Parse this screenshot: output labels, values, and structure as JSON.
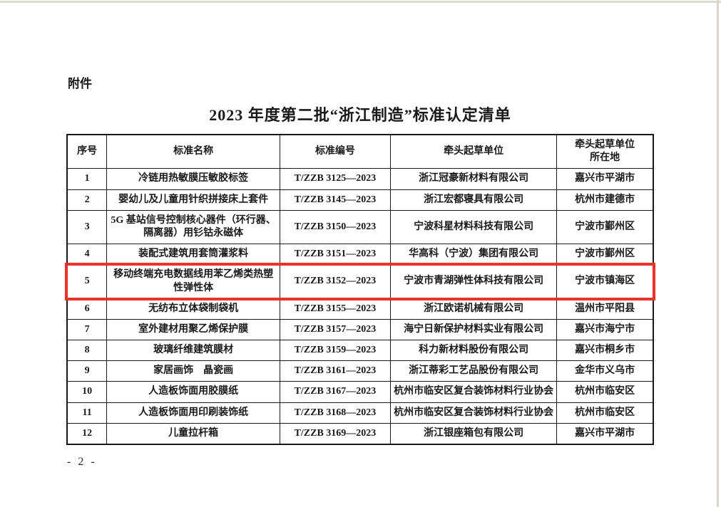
{
  "page": {
    "attachment_label": "附件",
    "title": "2023 年度第二批“浙江制造”标准认定清单",
    "page_number": "- 2 -"
  },
  "highlight_color": "#e8322a",
  "table": {
    "columns": [
      {
        "key": "no",
        "label": "序号"
      },
      {
        "key": "name",
        "label": "标准名称"
      },
      {
        "key": "code",
        "label": "标准编号"
      },
      {
        "key": "unit",
        "label": "牵头起草单位"
      },
      {
        "key": "location",
        "label": "牵头起草单位\n所在地"
      }
    ],
    "rows": [
      {
        "no": "1",
        "name": "冷链用热敏膜压敏胶标签",
        "code": "T/ZZB 3125—2023",
        "unit": "浙江冠豪新材料有限公司",
        "location": "嘉兴市平湖市",
        "highlighted": false
      },
      {
        "no": "2",
        "name": "婴幼儿及儿童用针织拼接床上套件",
        "code": "T/ZZB 3145—2023",
        "unit": "浙江宏都寝具有限公司",
        "location": "杭州市建德市",
        "highlighted": false
      },
      {
        "no": "3",
        "name": "5G 基站信号控制核心器件（环行器、隔离器）用钐钴永磁体",
        "code": "T/ZZB 3150—2023",
        "unit": "宁波科星材料科技有限公司",
        "location": "宁波市鄞州区",
        "highlighted": false
      },
      {
        "no": "4",
        "name": "装配式建筑用套筒灌浆料",
        "code": "T/ZZB 3151—2023",
        "unit": "华高科（宁波）集团有限公司",
        "location": "宁波市鄞州区",
        "highlighted": false
      },
      {
        "no": "5",
        "name": "移动终端充电数据线用苯乙烯类热塑性弹性体",
        "code": "T/ZZB 3152—2023",
        "unit": "宁波市青湖弹性体科技有限公司",
        "location": "宁波市镇海区",
        "highlighted": true
      },
      {
        "no": "6",
        "name": "无纺布立体袋制袋机",
        "code": "T/ZZB 3155—2023",
        "unit": "浙江欧诺机械有限公司",
        "location": "温州市平阳县",
        "highlighted": false
      },
      {
        "no": "7",
        "name": "室外建材用聚乙烯保护膜",
        "code": "T/ZZB 3157—2023",
        "unit": "海宁日新保护材料实业有限公司",
        "location": "嘉兴市海宁市",
        "highlighted": false
      },
      {
        "no": "8",
        "name": "玻璃纤维建筑膜材",
        "code": "T/ZZB 3159—2023",
        "unit": "科力新材料股份有限公司",
        "location": "嘉兴市桐乡市",
        "highlighted": false
      },
      {
        "no": "9",
        "name": "家居画饰　晶瓷画",
        "code": "T/ZZB 3161—2023",
        "unit": "浙江蒂彩工艺品股份有限公司",
        "location": "金华市义乌市",
        "highlighted": false
      },
      {
        "no": "10",
        "name": "人造板饰面用胶膜纸",
        "code": "T/ZZB 3167—2023",
        "unit": "杭州市临安区复合装饰材料行业协会",
        "location": "杭州市临安区",
        "highlighted": false
      },
      {
        "no": "11",
        "name": "人造板饰面用印刷装饰纸",
        "code": "T/ZZB 3168—2023",
        "unit": "杭州市临安区复合装饰材料行业协会",
        "location": "杭州市临安区",
        "highlighted": false
      },
      {
        "no": "12",
        "name": "儿童拉杆箱",
        "code": "T/ZZB 3169—2023",
        "unit": "浙江银座箱包有限公司",
        "location": "嘉兴市平湖市",
        "highlighted": false
      }
    ]
  }
}
